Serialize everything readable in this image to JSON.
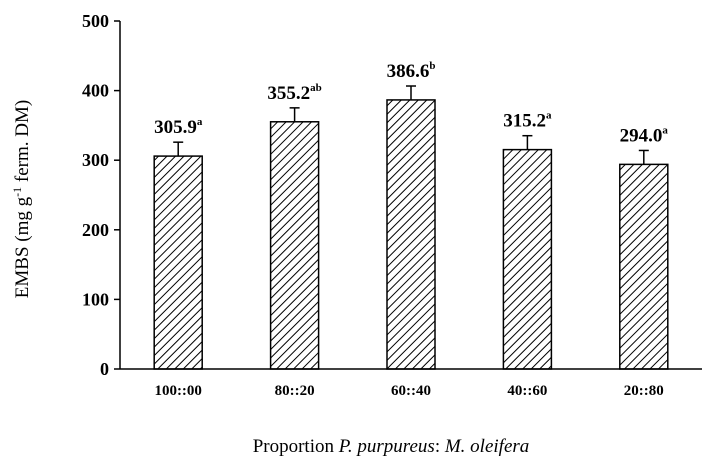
{
  "chart_data": {
    "type": "bar",
    "categories": [
      "100::00",
      "80::20",
      "60::40",
      "40::60",
      "20::80"
    ],
    "values": [
      305.9,
      355.2,
      386.6,
      315.2,
      294.0
    ],
    "errors": [
      20,
      20,
      20,
      20,
      20
    ],
    "labels": [
      "305.9",
      "355.2",
      "386.6",
      "315.2",
      "294.0"
    ],
    "letters": [
      "a",
      "ab",
      "b",
      "a",
      "a"
    ],
    "xlabel_parts": [
      {
        "text": "Proportion ",
        "italic": false
      },
      {
        "text": "P. purpureus",
        "italic": true
      },
      {
        "text": ": ",
        "italic": false
      },
      {
        "text": "M. oleifera",
        "italic": true
      }
    ],
    "ylabel": {
      "pre": "EMBS (mg g",
      "sup": "-1",
      "post": " ferm. DM)"
    },
    "ylim": [
      0,
      500
    ],
    "yticks": [
      0,
      100,
      200,
      300,
      400,
      500
    ],
    "grid": false,
    "bar_fill": "hatched",
    "colors": {
      "bar_stroke": "#000000",
      "hatch": "#000000",
      "background": "#ffffff"
    }
  }
}
